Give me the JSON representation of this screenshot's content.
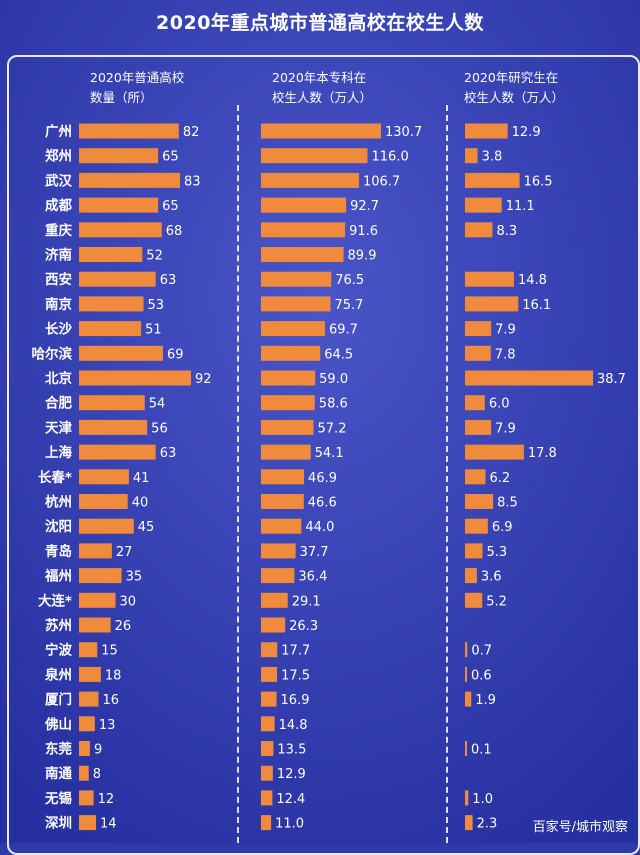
{
  "title": "2020年重点城市普通高校在校生人数",
  "watermark": "百家号/城市观察",
  "colors": {
    "background": "#2f3aa8",
    "bar": "#f08a3c",
    "text": "#ffffff"
  },
  "chart_data": [
    {
      "type": "bar",
      "title": "2020年普通高校数量（所）",
      "title_lines": [
        "2020年普通高校",
        "数量（所）"
      ],
      "categories": [
        "广州",
        "郑州",
        "武汉",
        "成都",
        "重庆",
        "济南",
        "西安",
        "南京",
        "长沙",
        "哈尔滨",
        "北京",
        "合肥",
        "天津",
        "上海",
        "长春*",
        "杭州",
        "沈阳",
        "青岛",
        "福州",
        "大连*",
        "苏州",
        "宁波",
        "泉州",
        "厦门",
        "佛山",
        "东莞",
        "南通",
        "无锡",
        "深圳"
      ],
      "values": [
        82,
        65,
        83,
        65,
        68,
        52,
        63,
        53,
        51,
        69,
        92,
        54,
        56,
        63,
        41,
        40,
        45,
        27,
        35,
        30,
        26,
        15,
        18,
        16,
        13,
        9,
        8,
        12,
        14
      ],
      "labels": [
        "82",
        "65",
        "83",
        "65",
        "68",
        "52",
        "63",
        "53",
        "51",
        "69",
        "92",
        "54",
        "56",
        "63",
        "41",
        "40",
        "45",
        "27",
        "35",
        "30",
        "26",
        "15",
        "18",
        "16",
        "13",
        "9",
        "8",
        "12",
        "14"
      ]
    },
    {
      "type": "bar",
      "title": "2020年本专科在校生人数（万人）",
      "title_lines": [
        "2020年本专科在",
        "校生人数（万人）"
      ],
      "categories": [
        "广州",
        "郑州",
        "武汉",
        "成都",
        "重庆",
        "济南",
        "西安",
        "南京",
        "长沙",
        "哈尔滨",
        "北京",
        "合肥",
        "天津",
        "上海",
        "长春*",
        "杭州",
        "沈阳",
        "青岛",
        "福州",
        "大连*",
        "苏州",
        "宁波",
        "泉州",
        "厦门",
        "佛山",
        "东莞",
        "南通",
        "无锡",
        "深圳"
      ],
      "values": [
        130.7,
        116.0,
        106.7,
        92.7,
        91.6,
        89.9,
        76.5,
        75.7,
        69.7,
        64.5,
        59.0,
        58.6,
        57.2,
        54.1,
        46.9,
        46.6,
        44.0,
        37.7,
        36.4,
        29.1,
        26.3,
        17.7,
        17.5,
        16.9,
        14.8,
        13.5,
        12.9,
        12.4,
        11.0
      ],
      "labels": [
        "130.7",
        "116.0",
        "106.7",
        "92.7",
        "91.6",
        "89.9",
        "76.5",
        "75.7",
        "69.7",
        "64.5",
        "59.0",
        "58.6",
        "57.2",
        "54.1",
        "46.9",
        "46.6",
        "44.0",
        "37.7",
        "36.4",
        "29.1",
        "26.3",
        "17.7",
        "17.5",
        "16.9",
        "14.8",
        "13.5",
        "12.9",
        "12.4",
        "11.0"
      ]
    },
    {
      "type": "bar",
      "title": "2020年研究生在校生人数（万人）",
      "title_lines": [
        "2020年研究生在",
        "校生人数（万人）"
      ],
      "categories": [
        "广州",
        "郑州",
        "武汉",
        "成都",
        "重庆",
        "济南",
        "西安",
        "南京",
        "长沙",
        "哈尔滨",
        "北京",
        "合肥",
        "天津",
        "上海",
        "长春*",
        "杭州",
        "沈阳",
        "青岛",
        "福州",
        "大连*",
        "苏州",
        "宁波",
        "泉州",
        "厦门",
        "佛山",
        "东莞",
        "南通",
        "无锡",
        "深圳"
      ],
      "values": [
        12.9,
        3.8,
        16.5,
        11.1,
        8.3,
        null,
        14.8,
        16.1,
        7.9,
        7.8,
        38.7,
        6.0,
        7.9,
        17.8,
        6.2,
        8.5,
        6.9,
        5.3,
        3.6,
        5.2,
        null,
        0.7,
        0.6,
        1.9,
        null,
        0.1,
        null,
        1.0,
        2.3
      ],
      "labels": [
        "12.9",
        "3.8",
        "16.5",
        "11.1",
        "8.3",
        "",
        "14.8",
        "16.1",
        "7.9",
        "7.8",
        "38.7",
        "6.0",
        "7.9",
        "17.8",
        "6.2",
        "8.5",
        "6.9",
        "5.3",
        "3.6",
        "5.2",
        "",
        "0.7",
        "0.6",
        "1.9",
        "",
        "0.1",
        "",
        "1.0",
        "2.3"
      ]
    }
  ]
}
